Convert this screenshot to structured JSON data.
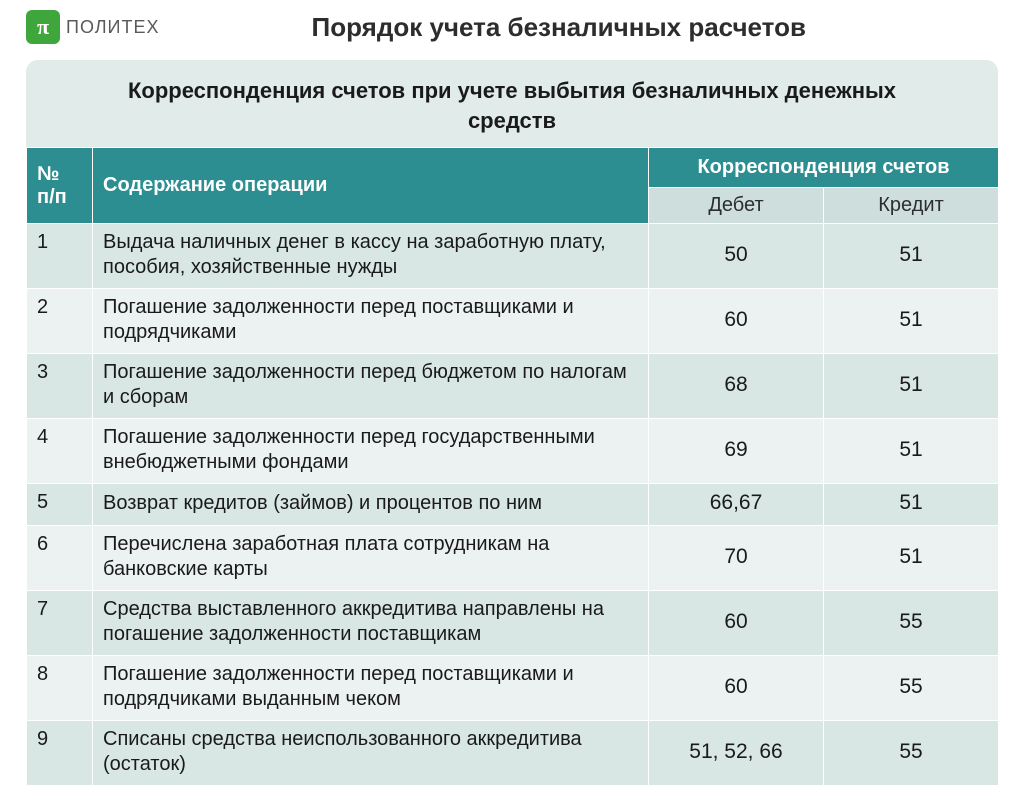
{
  "brand": {
    "pi": "π",
    "name": "ПОЛИТЕХ"
  },
  "page_title": "Порядок учета безналичных расчетов",
  "subtitle": "Корреспонденция счетов при учете выбытия безналичных денежных средств",
  "table": {
    "headers": {
      "num": "№ п/п",
      "operation": "Содержание операции",
      "corr": "Корреспонденция счетов",
      "debit": "Дебет",
      "credit": "Кредит"
    },
    "rows": [
      {
        "n": "1",
        "op": "Выдача наличных денег  в кассу на заработную плату, пособия,  хозяйственные нужды",
        "debit": "50",
        "credit": "51"
      },
      {
        "n": "2",
        "op": "Погашение задолженности перед поставщиками и подрядчиками",
        "debit": "60",
        "credit": "51"
      },
      {
        "n": "3",
        "op": "Погашение задолженности перед бюджетом по налогам и сборам",
        "debit": "68",
        "credit": "51"
      },
      {
        "n": "4",
        "op": "Погашение задолженности перед государственными внебюджетными фондами",
        "debit": "69",
        "credit": "51"
      },
      {
        "n": "5",
        "op": "Возврат кредитов (займов) и процентов по ним",
        "debit": "66,67",
        "credit": "51"
      },
      {
        "n": "6",
        "op": "Перечислена заработная плата сотрудникам на банковские карты",
        "debit": "70",
        "credit": "51"
      },
      {
        "n": "7",
        "op": "Средства выставленного аккредитива направлены на погашение задолженности поставщикам",
        "debit": "60",
        "credit": "55"
      },
      {
        "n": "8",
        "op": "Погашение задолженности перед поставщиками и подрядчиками выданным чеком",
        "debit": "60",
        "credit": "55"
      },
      {
        "n": "9",
        "op": "Списаны средства неиспользованного аккредитива (остаток)",
        "debit": "51, 52, 66",
        "credit": "55"
      }
    ]
  },
  "colors": {
    "header_bg": "#2c8e90",
    "subhead_bg": "#cddedd",
    "row_even_bg": "#d8e6e4",
    "row_odd_bg": "#ecf2f1",
    "subtitle_bg": "#e1ebe9",
    "logo_bg": "#3ea63a"
  }
}
